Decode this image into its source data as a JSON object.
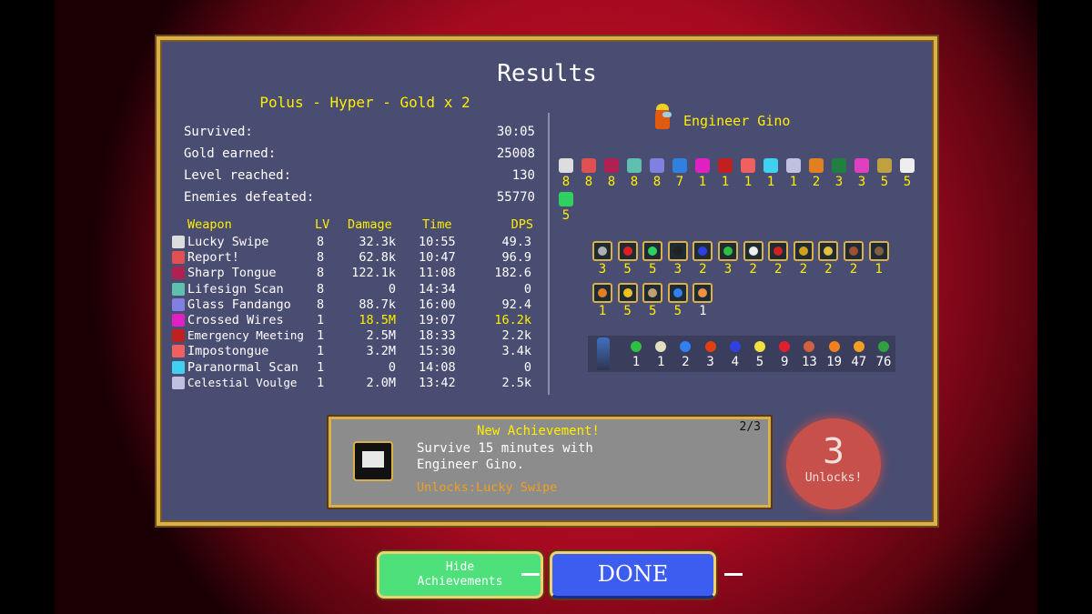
{
  "title": "Results",
  "subtitle": "Polus - Hyper - Gold x 2",
  "stats": [
    {
      "label": "Survived:",
      "value": "30:05"
    },
    {
      "label": "Gold earned:",
      "value": "25008"
    },
    {
      "label": "Level reached:",
      "value": "130"
    },
    {
      "label": "Enemies defeated:",
      "value": "55770"
    }
  ],
  "weapons_table": {
    "headers": {
      "weapon": "Weapon",
      "lv": "LV",
      "damage": "Damage",
      "time": "Time",
      "dps": "DPS"
    },
    "rows": [
      {
        "name": "Lucky Swipe",
        "lv": "8",
        "damage": "32.3k",
        "time": "10:55",
        "dps": "49.3",
        "icon": "card-icon",
        "color": "#dddddd"
      },
      {
        "name": "Report!",
        "lv": "8",
        "damage": "62.8k",
        "time": "10:47",
        "dps": "96.9",
        "icon": "megaphone-icon",
        "color": "#e05050"
      },
      {
        "name": "Sharp Tongue",
        "lv": "8",
        "damage": "122.1k",
        "time": "11:08",
        "dps": "182.6",
        "icon": "tongue-icon",
        "color": "#b02050"
      },
      {
        "name": "Lifesign Scan",
        "lv": "8",
        "damage": "0",
        "time": "14:34",
        "dps": "0",
        "icon": "scanner-icon",
        "color": "#60c0b0"
      },
      {
        "name": "Glass Fandango",
        "lv": "8",
        "damage": "88.7k",
        "time": "16:00",
        "dps": "92.4",
        "icon": "sword-icon",
        "color": "#8080e0"
      },
      {
        "name": "Crossed Wires",
        "lv": "1",
        "damage": "18.5M",
        "time": "19:07",
        "dps": "16.2k",
        "highlight": true,
        "icon": "wires-icon",
        "color": "#e020c0"
      },
      {
        "name": "Emergency Meeting",
        "lv": "1",
        "damage": "2.5M",
        "time": "18:33",
        "dps": "2.2k",
        "icon": "button-icon",
        "color": "#c02020"
      },
      {
        "name": "Impostongue",
        "lv": "1",
        "damage": "3.2M",
        "time": "15:30",
        "dps": "3.4k",
        "icon": "impostongue-icon",
        "color": "#f06060"
      },
      {
        "name": "Paranormal Scan",
        "lv": "1",
        "damage": "0",
        "time": "14:08",
        "dps": "0",
        "icon": "ghost-scanner-icon",
        "color": "#40d0f0"
      },
      {
        "name": "Celestial Voulge",
        "lv": "1",
        "damage": "2.0M",
        "time": "13:42",
        "dps": "2.5k",
        "icon": "voulge-icon",
        "color": "#c0c0e0"
      }
    ]
  },
  "character": {
    "name": "Engineer Gino",
    "icon": "crewmate-icon",
    "color": "#e05a10"
  },
  "equipped": [
    {
      "icon": "card-icon",
      "level": "8",
      "color": "#dddddd"
    },
    {
      "icon": "megaphone-icon",
      "level": "8",
      "color": "#e05050"
    },
    {
      "icon": "tongue-icon",
      "level": "8",
      "color": "#b02050"
    },
    {
      "icon": "scanner-icon",
      "level": "8",
      "color": "#60c0b0"
    },
    {
      "icon": "sword-icon",
      "level": "8",
      "color": "#8080e0"
    },
    {
      "icon": "guitar-icon",
      "level": "7",
      "color": "#3080e0"
    },
    {
      "icon": "wires-icon",
      "level": "1",
      "color": "#e020c0"
    },
    {
      "icon": "button-icon",
      "level": "1",
      "color": "#c02020"
    },
    {
      "icon": "impostongue-icon",
      "level": "1",
      "color": "#f06060"
    },
    {
      "icon": "ghost-scanner-icon",
      "level": "1",
      "color": "#40d0f0"
    },
    {
      "icon": "voulge-icon",
      "level": "1",
      "color": "#c0c0e0"
    },
    {
      "icon": "ring-icon",
      "level": "2",
      "color": "#e08020"
    },
    {
      "icon": "green-crewmate-icon",
      "level": "3",
      "color": "#208040"
    },
    {
      "icon": "pink-crewmate-icon",
      "level": "3",
      "color": "#e040c0"
    },
    {
      "icon": "candelabra-icon",
      "level": "5",
      "color": "#c0a040"
    },
    {
      "icon": "wings-icon",
      "level": "5",
      "color": "#eeeeee"
    },
    {
      "icon": "feather-icon",
      "level": "5",
      "color": "#30d060"
    }
  ],
  "passives": [
    {
      "icon": "armor-icon",
      "level": "3",
      "color": "#b0b0b0"
    },
    {
      "icon": "heart-icon",
      "level": "5",
      "color": "#e02020"
    },
    {
      "icon": "feather-icon",
      "level": "5",
      "color": "#30d060"
    },
    {
      "icon": "hollow-heart-icon",
      "level": "3",
      "color": "#222222"
    },
    {
      "icon": "orb-icon",
      "level": "2",
      "color": "#3040e0"
    },
    {
      "icon": "clover-icon",
      "level": "3",
      "color": "#30c040"
    },
    {
      "icon": "wings-icon",
      "level": "2",
      "color": "#eeeeee"
    },
    {
      "icon": "tome-icon",
      "level": "2",
      "color": "#d02020"
    },
    {
      "icon": "crown-frame-icon",
      "level": "2",
      "color": "#d0a020"
    },
    {
      "icon": "candelabra-icon",
      "level": "2",
      "color": "#e0c040"
    },
    {
      "icon": "bracer-icon",
      "level": "2",
      "color": "#a05030"
    },
    {
      "icon": "spellbinder-icon",
      "level": "1",
      "color": "#806040"
    },
    {
      "icon": "ring-icon",
      "level": "1",
      "color": "#e08020"
    },
    {
      "icon": "crown-icon",
      "level": "5",
      "color": "#f0c020"
    },
    {
      "icon": "mask-icon",
      "level": "5",
      "color": "#c0a070"
    },
    {
      "icon": "potion-icon",
      "level": "5",
      "color": "#3080f0"
    },
    {
      "icon": "hand-icon",
      "level": "1",
      "color": "#f09040",
      "white": true
    }
  ],
  "pickups": [
    {
      "icon": "clover-icon",
      "count": "1",
      "color": "#30c040"
    },
    {
      "icon": "clock-icon",
      "count": "1",
      "color": "#e0e0c0"
    },
    {
      "icon": "rosary-icon",
      "count": "2",
      "color": "#3080f0"
    },
    {
      "icon": "gem-icon",
      "count": "3",
      "color": "#e04010"
    },
    {
      "icon": "orb-icon",
      "count": "4",
      "color": "#3040e0"
    },
    {
      "icon": "chest-icon",
      "count": "5",
      "color": "#f0e040"
    },
    {
      "icon": "bag-icon",
      "count": "9",
      "color": "#e02030"
    },
    {
      "icon": "treasure-icon",
      "count": "13",
      "color": "#d06040"
    },
    {
      "icon": "chicken-icon",
      "count": "19",
      "color": "#f08020"
    },
    {
      "icon": "coin-icon",
      "count": "47",
      "color": "#f0a020"
    },
    {
      "icon": "money-bag-icon",
      "count": "76",
      "color": "#30a040"
    }
  ],
  "achievement": {
    "header": "New Achievement!",
    "progress": "2/3",
    "text": "Survive 15 minutes with Engineer Gino.",
    "unlocks": "Unlocks:Lucky Swipe"
  },
  "unlocks_badge": {
    "count": "3",
    "label": "Unlocks!"
  },
  "buttons": {
    "hide": "Hide Achievements",
    "done": "DONE"
  }
}
